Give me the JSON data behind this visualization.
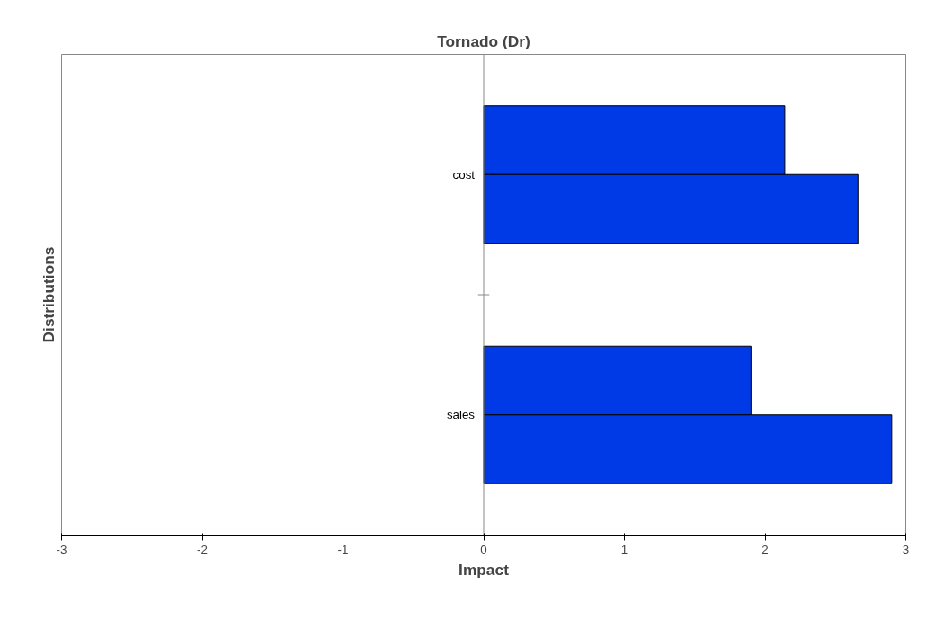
{
  "chart_data": {
    "type": "bar",
    "orientation": "horizontal",
    "title": "Tornado (Dr)",
    "xlabel": "Impact",
    "ylabel": "Distributions",
    "categories": [
      "cost",
      "sales"
    ],
    "series": [
      {
        "color": "#0039e6",
        "values": [
          2.14,
          1.9
        ]
      },
      {
        "color": "#0039e6",
        "values": [
          2.66,
          2.9
        ]
      }
    ],
    "xlim": [
      -3,
      3
    ],
    "xticks": [
      -3,
      -2,
      -1,
      0,
      1,
      2,
      3
    ],
    "grid": false
  }
}
